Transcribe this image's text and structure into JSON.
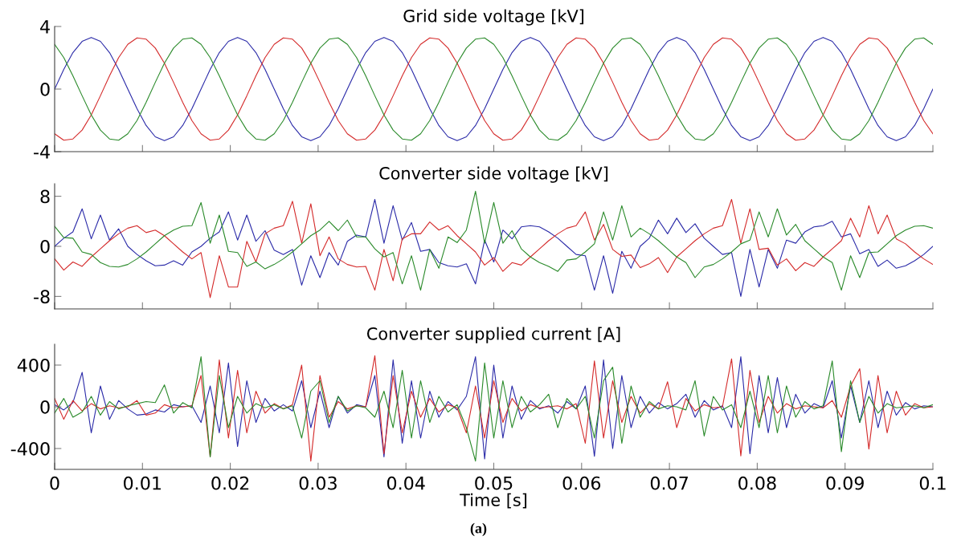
{
  "chart_data": [
    {
      "type": "line",
      "title": "Grid side voltage [kV]",
      "xlim": [
        0,
        0.1
      ],
      "xticks": [
        0,
        0.01,
        0.02,
        0.03,
        0.04,
        0.05,
        0.06,
        0.07,
        0.08,
        0.09,
        0.1
      ],
      "ylim": [
        -4,
        4
      ],
      "yticks": [
        -4,
        0,
        4
      ],
      "tick_labels": "y",
      "marker": "none",
      "line_style": "solid",
      "x": [
        0,
        0.00104,
        0.00208,
        0.00313,
        0.00417,
        0.00521,
        0.00625,
        0.00729,
        0.00833,
        0.00938,
        0.01042,
        0.01146,
        0.0125,
        0.01354,
        0.01458,
        0.01563,
        0.01667,
        0.01771,
        0.01875,
        0.01979,
        0.02083,
        0.02188,
        0.02292,
        0.02396,
        0.025,
        0.02604,
        0.02708,
        0.02813,
        0.02917,
        0.03021,
        0.03125,
        0.03229,
        0.03333,
        0.03438,
        0.03542,
        0.03646,
        0.0375,
        0.03854,
        0.03958,
        0.04063,
        0.04167,
        0.04271,
        0.04375,
        0.04479,
        0.04583,
        0.04688,
        0.04792,
        0.04896,
        0.05,
        0.05104,
        0.05208,
        0.05313,
        0.05417,
        0.05521,
        0.05625,
        0.05729,
        0.05833,
        0.05938,
        0.06042,
        0.06146,
        0.0625,
        0.06354,
        0.06458,
        0.06563,
        0.06667,
        0.06771,
        0.06875,
        0.06979,
        0.07083,
        0.07188,
        0.07292,
        0.07396,
        0.075,
        0.07604,
        0.07708,
        0.07813,
        0.07917,
        0.08021,
        0.08125,
        0.08229,
        0.08333,
        0.08438,
        0.08542,
        0.08646,
        0.0875,
        0.08854,
        0.08958,
        0.09063,
        0.09167,
        0.09271,
        0.09375,
        0.09479,
        0.09583,
        0.09688,
        0.09792,
        0.09896,
        0.1
      ],
      "series": [
        {
          "color": "#2a2aa8",
          "values": [
            0,
            1.26,
            2.33,
            3.05,
            3.3,
            3.05,
            2.33,
            1.26,
            0,
            -1.26,
            -2.33,
            -3.05,
            -3.3,
            -3.05,
            -2.33,
            -1.26,
            0,
            1.26,
            2.33,
            3.05,
            3.3,
            3.05,
            2.33,
            1.26,
            0,
            -1.26,
            -2.33,
            -3.05,
            -3.3,
            -3.05,
            -2.33,
            -1.26,
            0,
            1.26,
            2.33,
            3.05,
            3.3,
            3.05,
            2.33,
            1.26,
            0,
            -1.26,
            -2.33,
            -3.05,
            -3.3,
            -3.05,
            -2.33,
            -1.26,
            0,
            1.26,
            2.33,
            3.05,
            3.3,
            3.05,
            2.33,
            1.26,
            0,
            -1.26,
            -2.33,
            -3.05,
            -3.3,
            -3.05,
            -2.33,
            -1.26,
            0,
            1.26,
            2.33,
            3.05,
            3.3,
            3.05,
            2.33,
            1.26,
            0,
            -1.26,
            -2.33,
            -3.05,
            -3.3,
            -3.05,
            -2.33,
            -1.26,
            0,
            1.26,
            2.33,
            3.05,
            3.3,
            3.05,
            2.33,
            1.26,
            0,
            -1.26,
            -2.33,
            -3.05,
            -3.3,
            -3.05,
            -2.33,
            -1.26,
            0
          ]
        },
        {
          "color": "#d42a2a",
          "values": [
            -2.86,
            -3.27,
            -3.19,
            -2.62,
            -1.65,
            -0.43,
            0.85,
            2.01,
            2.86,
            3.27,
            3.19,
            2.62,
            1.65,
            0.43,
            -0.85,
            -2.01,
            -2.86,
            -3.27,
            -3.19,
            -2.62,
            -1.65,
            -0.43,
            0.85,
            2.01,
            2.86,
            3.27,
            3.19,
            2.62,
            1.65,
            0.43,
            -0.85,
            -2.01,
            -2.86,
            -3.27,
            -3.19,
            -2.62,
            -1.65,
            -0.43,
            0.85,
            2.01,
            2.86,
            3.27,
            3.19,
            2.62,
            1.65,
            0.43,
            -0.85,
            -2.01,
            -2.86,
            -3.27,
            -3.19,
            -2.62,
            -1.65,
            -0.43,
            0.85,
            2.01,
            2.86,
            3.27,
            3.19,
            2.62,
            1.65,
            0.43,
            -0.85,
            -2.01,
            -2.86,
            -3.27,
            -3.19,
            -2.62,
            -1.65,
            -0.43,
            0.85,
            2.01,
            2.86,
            3.27,
            3.19,
            2.62,
            1.65,
            0.43,
            -0.85,
            -2.01,
            -2.86,
            -3.27,
            -3.19,
            -2.62,
            -1.65,
            -0.43,
            0.85,
            2.01,
            2.86,
            3.27,
            3.19,
            2.62,
            1.65,
            0.43,
            -0.85,
            -2.01,
            -2.86
          ]
        },
        {
          "color": "#2a8a2a",
          "values": [
            2.86,
            2.01,
            0.85,
            -0.43,
            -1.65,
            -2.62,
            -3.19,
            -3.27,
            -2.86,
            -2.01,
            -0.85,
            0.43,
            1.65,
            2.62,
            3.19,
            3.27,
            2.86,
            2.01,
            0.85,
            -0.43,
            -1.65,
            -2.62,
            -3.19,
            -3.27,
            -2.86,
            -2.01,
            -0.85,
            0.43,
            1.65,
            2.62,
            3.19,
            3.27,
            2.86,
            2.01,
            0.85,
            -0.43,
            -1.65,
            -2.62,
            -3.19,
            -3.27,
            -2.86,
            -2.01,
            -0.85,
            0.43,
            1.65,
            2.62,
            3.19,
            3.27,
            2.86,
            2.01,
            0.85,
            -0.43,
            -1.65,
            -2.62,
            -3.19,
            -3.27,
            -2.86,
            -2.01,
            -0.85,
            0.43,
            1.65,
            2.62,
            3.19,
            3.27,
            2.86,
            2.01,
            0.85,
            -0.43,
            -1.65,
            -2.62,
            -3.19,
            -3.27,
            -2.86,
            -2.01,
            -0.85,
            0.43,
            1.65,
            2.62,
            3.19,
            3.27,
            2.86,
            2.01,
            0.85,
            -0.43,
            -1.65,
            -2.62,
            -3.19,
            -3.27,
            -2.86,
            -2.01,
            -0.85,
            0.43,
            1.65,
            2.62,
            3.19,
            3.27,
            2.86
          ]
        }
      ]
    },
    {
      "type": "line",
      "title": "Converter side voltage [kV]",
      "xlim": [
        0,
        0.1
      ],
      "xticks": [
        0,
        0.01,
        0.02,
        0.03,
        0.04,
        0.05,
        0.06,
        0.07,
        0.08,
        0.09,
        0.1
      ],
      "ylim": [
        -10,
        10
      ],
      "yticks": [
        -8,
        0,
        8
      ],
      "tick_labels": "y",
      "marker": "none",
      "line_style": "solid",
      "x": [
        0,
        0.00104,
        0.00208,
        0.00313,
        0.00417,
        0.00521,
        0.00625,
        0.00729,
        0.00833,
        0.00938,
        0.01042,
        0.01146,
        0.0125,
        0.01354,
        0.01458,
        0.01563,
        0.01667,
        0.01771,
        0.01875,
        0.01979,
        0.02083,
        0.02188,
        0.02292,
        0.02396,
        0.025,
        0.02604,
        0.02708,
        0.02813,
        0.02917,
        0.03021,
        0.03125,
        0.03229,
        0.03333,
        0.03438,
        0.03542,
        0.03646,
        0.0375,
        0.03854,
        0.03958,
        0.04063,
        0.04167,
        0.04271,
        0.04375,
        0.04479,
        0.04583,
        0.04688,
        0.04792,
        0.04896,
        0.05,
        0.05104,
        0.05208,
        0.05313,
        0.05417,
        0.05521,
        0.05625,
        0.05729,
        0.05833,
        0.05938,
        0.06042,
        0.06146,
        0.0625,
        0.06354,
        0.06458,
        0.06563,
        0.06667,
        0.06771,
        0.06875,
        0.06979,
        0.07083,
        0.07188,
        0.07292,
        0.07396,
        0.075,
        0.07604,
        0.07708,
        0.07813,
        0.07917,
        0.08021,
        0.08125,
        0.08229,
        0.08333,
        0.08438,
        0.08542,
        0.08646,
        0.0875,
        0.08854,
        0.08958,
        0.09063,
        0.09167,
        0.09271,
        0.09375,
        0.09479,
        0.09583,
        0.09688,
        0.09792,
        0.09896,
        0.1
      ],
      "series": [
        {
          "color": "#2a2aa8",
          "values": [
            0,
            1.3,
            2.3,
            6.0,
            1.2,
            5.0,
            1.0,
            2.8,
            0,
            -1.3,
            -2.3,
            -3.1,
            -3.0,
            -2.3,
            -3.0,
            -0.9,
            0,
            1.3,
            2.3,
            5.5,
            1.0,
            5.0,
            0.8,
            2.5,
            -0.6,
            -1.3,
            -0.5,
            -6.2,
            -1.5,
            -5.0,
            -1.0,
            -3.0,
            0.8,
            1.8,
            1.5,
            7.5,
            0.5,
            6.5,
            1.0,
            3.8,
            -0.8,
            -0.5,
            -2.6,
            -3.1,
            -3.3,
            -2.8,
            -6.0,
            1.0,
            -2.5,
            2.6,
            1.2,
            3.1,
            3.3,
            3.1,
            2.3,
            1.3,
            0,
            -1.3,
            -1.5,
            -7.0,
            -1.5,
            -7.5,
            -0.8,
            -3.5,
            0,
            1.3,
            4.2,
            2.0,
            4.5,
            2.2,
            3.6,
            1.3,
            0,
            -1.3,
            -1.0,
            -8.0,
            -0.5,
            -6.5,
            -0.5,
            -3.5,
            1.0,
            0.5,
            2.3,
            3.1,
            3.3,
            4.0,
            1.5,
            2.0,
            -1.2,
            -0.5,
            -3.2,
            -2.2,
            -3.5,
            -3.1,
            -2.3,
            -1.3,
            0
          ]
        },
        {
          "color": "#d42a2a",
          "values": [
            -2.0,
            -3.8,
            -2.5,
            -3.2,
            -1.7,
            -0.4,
            0.9,
            2.0,
            2.9,
            3.3,
            2.2,
            2.6,
            1.7,
            0.4,
            -0.9,
            -2.0,
            -1.0,
            -8.2,
            -1.5,
            -6.5,
            -6.5,
            0.8,
            -2.5,
            2.0,
            2.9,
            3.3,
            7.2,
            0.5,
            6.8,
            -1.5,
            1.5,
            -2.0,
            -2.9,
            -3.3,
            -3.2,
            -7.0,
            -0.5,
            -5.5,
            1.2,
            2.0,
            2.0,
            3.9,
            2.6,
            3.3,
            1.7,
            0.4,
            -0.9,
            -3.0,
            -1.8,
            -4.0,
            -2.6,
            -3.0,
            -1.7,
            -0.4,
            0.9,
            2.0,
            2.9,
            3.3,
            5.5,
            1.0,
            3.5,
            -0.5,
            -1.6,
            -1.4,
            -3.4,
            -2.8,
            -1.8,
            -4.2,
            -1.7,
            -0.4,
            0.9,
            2.0,
            2.9,
            3.3,
            7.5,
            0.5,
            6.0,
            -0.5,
            -0.3,
            -3.0,
            -2.0,
            -3.9,
            -2.6,
            -3.2,
            -1.7,
            -0.4,
            0.9,
            4.5,
            1.5,
            6.5,
            2.0,
            5.0,
            1.2,
            0.4,
            -0.9,
            -2.0,
            -2.9
          ]
        },
        {
          "color": "#2a8a2a",
          "values": [
            3.2,
            1.4,
            1.3,
            -0.9,
            -1.3,
            -2.6,
            -3.2,
            -3.3,
            -2.9,
            -2.0,
            -0.9,
            0.4,
            1.7,
            2.6,
            3.2,
            3.3,
            7.0,
            0.5,
            5.0,
            -0.8,
            -1.0,
            -3.2,
            -2.5,
            -3.6,
            -2.9,
            -2.0,
            -0.9,
            0.4,
            1.7,
            2.6,
            4.0,
            2.5,
            4.2,
            1.5,
            1.5,
            -0.4,
            -1.7,
            -1.0,
            -6.0,
            -1.5,
            -7.0,
            -0.5,
            -3.5,
            1.5,
            0.6,
            2.6,
            8.8,
            0.5,
            7.0,
            0.5,
            2.5,
            -0.4,
            -1.7,
            -2.6,
            -3.2,
            -4.0,
            -2.2,
            -2.0,
            -0.9,
            0.4,
            5.5,
            1.0,
            6.5,
            1.5,
            2.9,
            2.0,
            0.9,
            -0.4,
            -1.7,
            -2.6,
            -5.0,
            -3.3,
            -2.9,
            -2.0,
            -0.9,
            0.4,
            1.0,
            5.5,
            1.5,
            6.0,
            1.8,
            3.5,
            0.9,
            -0.4,
            -1.7,
            -2.6,
            -7.0,
            -1.5,
            -5.0,
            -1.0,
            -0.9,
            0.4,
            1.7,
            2.6,
            3.2,
            3.3,
            2.9
          ]
        }
      ]
    },
    {
      "type": "line",
      "title": "Converter supplied current [A]",
      "xlabel": "Time [s]",
      "annotations": [
        "(a)"
      ],
      "xlim": [
        0,
        0.1
      ],
      "xticks": [
        0,
        0.01,
        0.02,
        0.03,
        0.04,
        0.05,
        0.06,
        0.07,
        0.08,
        0.09,
        0.1
      ],
      "ylim": [
        -600,
        600
      ],
      "yticks": [
        -400,
        0,
        400
      ],
      "marker": "none",
      "line_style": "solid",
      "x": [
        0,
        0.00104,
        0.00208,
        0.00313,
        0.00417,
        0.00521,
        0.00625,
        0.00729,
        0.00833,
        0.00938,
        0.01042,
        0.01146,
        0.0125,
        0.01354,
        0.01458,
        0.01563,
        0.01667,
        0.01771,
        0.01875,
        0.01979,
        0.02083,
        0.02188,
        0.02292,
        0.02396,
        0.025,
        0.02604,
        0.02708,
        0.02813,
        0.02917,
        0.03021,
        0.03125,
        0.03229,
        0.03333,
        0.03438,
        0.03542,
        0.03646,
        0.0375,
        0.03854,
        0.03958,
        0.04063,
        0.04167,
        0.04271,
        0.04375,
        0.04479,
        0.04583,
        0.04688,
        0.04792,
        0.04896,
        0.05,
        0.05104,
        0.05208,
        0.05313,
        0.05417,
        0.05521,
        0.05625,
        0.05729,
        0.05833,
        0.05938,
        0.06042,
        0.06146,
        0.0625,
        0.06354,
        0.06458,
        0.06563,
        0.06667,
        0.06771,
        0.06875,
        0.06979,
        0.07083,
        0.07188,
        0.07292,
        0.07396,
        0.075,
        0.07604,
        0.07708,
        0.07813,
        0.07917,
        0.08021,
        0.08125,
        0.08229,
        0.08333,
        0.08438,
        0.08542,
        0.08646,
        0.0875,
        0.08854,
        0.08958,
        0.09063,
        0.09167,
        0.09271,
        0.09375,
        0.09479,
        0.09583,
        0.09688,
        0.09792,
        0.09896,
        0.1
      ],
      "series": [
        {
          "color": "#2a2aa8",
          "values": [
            20,
            -30,
            40,
            330,
            -250,
            200,
            -120,
            60,
            -20,
            -80,
            -70,
            -30,
            -50,
            20,
            0,
            10,
            -150,
            200,
            -250,
            420,
            -380,
            250,
            -150,
            80,
            -40,
            20,
            -40,
            250,
            -200,
            150,
            -200,
            100,
            -60,
            20,
            0,
            300,
            -480,
            450,
            -350,
            250,
            -300,
            150,
            -100,
            50,
            -30,
            100,
            480,
            -500,
            400,
            -300,
            200,
            -120,
            60,
            -20,
            10,
            -60,
            50,
            -20,
            200,
            -475,
            450,
            -400,
            300,
            -200,
            100,
            -60,
            40,
            -20,
            30,
            120,
            -100,
            60,
            -30,
            10,
            -200,
            480,
            -450,
            300,
            -250,
            280,
            -200,
            120,
            -60,
            30,
            -10,
            250,
            -300,
            200,
            -150,
            250,
            -200,
            150,
            -80,
            40,
            -20,
            10,
            0
          ]
        },
        {
          "color": "#d42a2a",
          "values": [
            80,
            -120,
            60,
            -40,
            30,
            -20,
            10,
            -10,
            0,
            60,
            -80,
            -60,
            20,
            -10,
            0,
            10,
            300,
            -480,
            450,
            -300,
            350,
            -250,
            150,
            -60,
            30,
            -20,
            20,
            400,
            -520,
            300,
            -100,
            50,
            -20,
            10,
            0,
            490,
            -450,
            300,
            -250,
            150,
            -100,
            80,
            -50,
            20,
            -10,
            -250,
            200,
            -300,
            250,
            -150,
            80,
            -40,
            20,
            -10,
            0,
            10,
            -20,
            30,
            -350,
            440,
            -300,
            250,
            -150,
            100,
            -60,
            30,
            -20,
            240,
            -200,
            80,
            -40,
            20,
            -10,
            0,
            460,
            -470,
            350,
            -150,
            100,
            -60,
            30,
            -20,
            10,
            0,
            -10,
            60,
            -100,
            200,
            365,
            -405,
            300,
            -250,
            150,
            -80,
            30,
            -10,
            0
          ]
        },
        {
          "color": "#2a8a2a",
          "values": [
            -60,
            80,
            -100,
            -50,
            100,
            -80,
            50,
            -20,
            10,
            30,
            50,
            40,
            210,
            -60,
            40,
            -10,
            480,
            -480,
            300,
            -200,
            100,
            -60,
            30,
            -10,
            20,
            -20,
            10,
            -300,
            150,
            250,
            -150,
            100,
            -40,
            10,
            -10,
            -100,
            150,
            -200,
            350,
            -300,
            250,
            -150,
            100,
            -50,
            20,
            -200,
            -520,
            420,
            -300,
            250,
            -200,
            100,
            -50,
            20,
            120,
            -200,
            80,
            -20,
            100,
            -300,
            250,
            380,
            -350,
            200,
            -100,
            50,
            -20,
            10,
            0,
            -30,
            250,
            -280,
            100,
            -30,
            20,
            -200,
            150,
            -200,
            300,
            -250,
            200,
            -100,
            50,
            -20,
            10,
            440,
            -430,
            250,
            -150,
            100,
            -60,
            30,
            -10,
            0,
            10,
            -10,
            20
          ]
        }
      ]
    }
  ]
}
